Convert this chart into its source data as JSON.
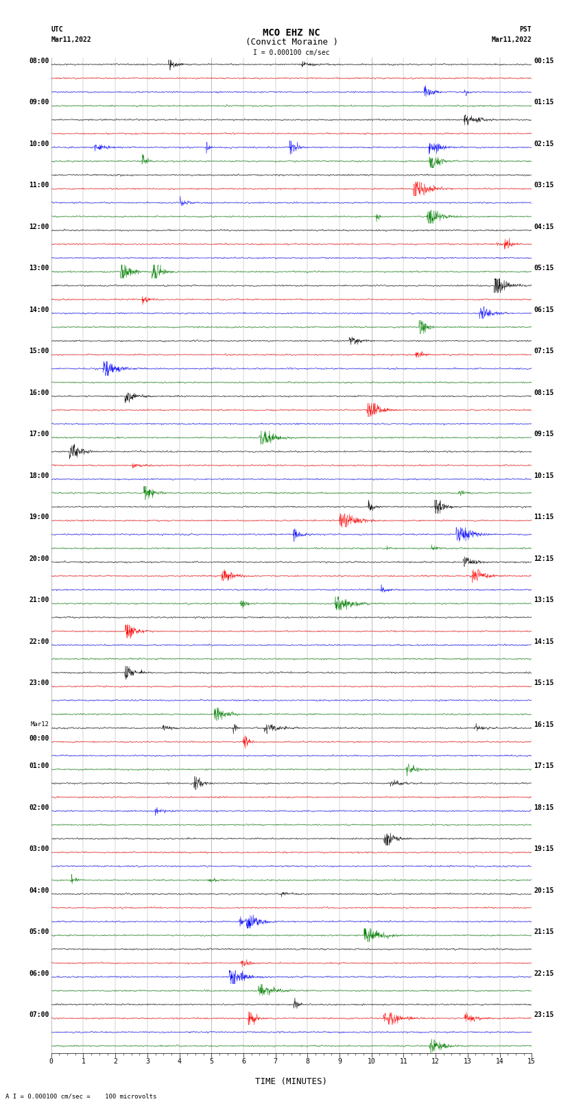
{
  "title_line1": "MCO EHZ NC",
  "title_line2": "(Convict Moraine )",
  "scale_label": "I = 0.000100 cm/sec",
  "bottom_label": "A I = 0.000100 cm/sec =    100 microvolts",
  "xlabel": "TIME (MINUTES)",
  "utc_label_line1": "UTC",
  "utc_label_line2": "Mar11,2022",
  "pst_label_line1": "PST",
  "pst_label_line2": "Mar11,2022",
  "left_times": [
    "08:00",
    "",
    "",
    "09:00",
    "",
    "",
    "10:00",
    "",
    "",
    "11:00",
    "",
    "",
    "12:00",
    "",
    "",
    "13:00",
    "",
    "",
    "14:00",
    "",
    "",
    "15:00",
    "",
    "",
    "16:00",
    "",
    "",
    "17:00",
    "",
    "",
    "18:00",
    "",
    "",
    "19:00",
    "",
    "",
    "20:00",
    "",
    "",
    "21:00",
    "",
    "",
    "22:00",
    "",
    "",
    "23:00",
    "",
    "",
    "Mar12",
    "00:00",
    "",
    "01:00",
    "",
    "",
    "02:00",
    "",
    "",
    "03:00",
    "",
    "",
    "04:00",
    "",
    "",
    "05:00",
    "",
    "",
    "06:00",
    "",
    "",
    "07:00",
    "",
    ""
  ],
  "right_times": [
    "00:15",
    "",
    "",
    "01:15",
    "",
    "",
    "02:15",
    "",
    "",
    "03:15",
    "",
    "",
    "04:15",
    "",
    "",
    "05:15",
    "",
    "",
    "06:15",
    "",
    "",
    "07:15",
    "",
    "",
    "08:15",
    "",
    "",
    "09:15",
    "",
    "",
    "10:15",
    "",
    "",
    "11:15",
    "",
    "",
    "12:15",
    "",
    "",
    "13:15",
    "",
    "",
    "14:15",
    "",
    "",
    "15:15",
    "",
    "",
    "16:15",
    "",
    "",
    "17:15",
    "",
    "",
    "18:15",
    "",
    "",
    "19:15",
    "",
    "",
    "20:15",
    "",
    "",
    "21:15",
    "",
    "",
    "22:15",
    "",
    "",
    "23:15",
    "",
    ""
  ],
  "colors": [
    "black",
    "red",
    "blue",
    "green"
  ],
  "num_rows": 72,
  "minutes_per_row": 15,
  "background_color": "white",
  "grid_color": "#888888",
  "title_fontsize": 10,
  "tick_fontsize": 7,
  "xlabel_fontsize": 9
}
